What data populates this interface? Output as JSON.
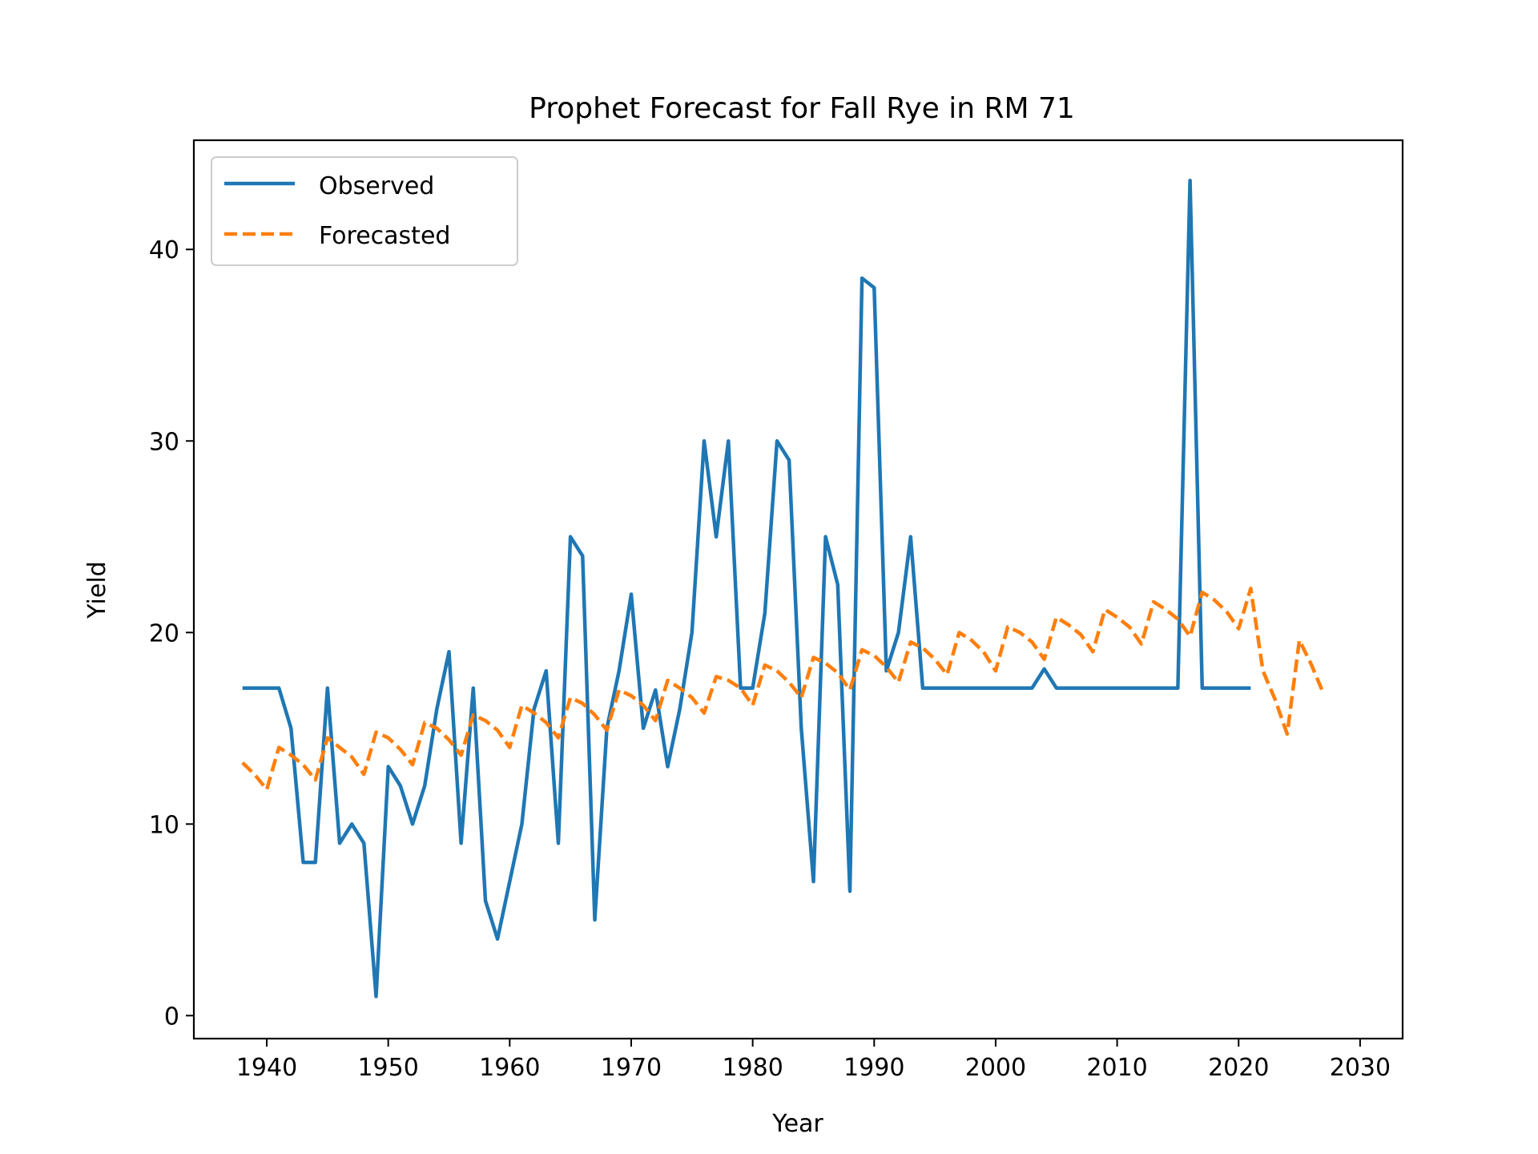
{
  "chart_data": {
    "type": "line",
    "title": "Prophet Forecast for Fall Rye in RM 71",
    "xlabel": "Year",
    "ylabel": "Yield",
    "xlim": [
      1934,
      2033.5
    ],
    "ylim": [
      -1.2,
      45.7
    ],
    "xticks": [
      1940,
      1950,
      1960,
      1970,
      1980,
      1990,
      2000,
      2010,
      2020,
      2030
    ],
    "yticks": [
      0,
      10,
      20,
      30,
      40
    ],
    "grid": false,
    "legend_position": "top-left",
    "series": [
      {
        "name": "Observed",
        "color": "#1f77b4",
        "style": "solid",
        "x": [
          1938,
          1939,
          1940,
          1941,
          1942,
          1943,
          1944,
          1945,
          1946,
          1947,
          1948,
          1949,
          1950,
          1951,
          1952,
          1953,
          1954,
          1955,
          1956,
          1957,
          1958,
          1959,
          1960,
          1961,
          1962,
          1963,
          1964,
          1965,
          1966,
          1967,
          1968,
          1969,
          1970,
          1971,
          1972,
          1973,
          1974,
          1975,
          1976,
          1977,
          1978,
          1979,
          1980,
          1981,
          1982,
          1983,
          1984,
          1985,
          1986,
          1987,
          1988,
          1989,
          1990,
          1991,
          1992,
          1993,
          1994,
          1995,
          1996,
          1997,
          1998,
          1999,
          2000,
          2001,
          2002,
          2003,
          2004,
          2005,
          2006,
          2007,
          2008,
          2009,
          2010,
          2011,
          2012,
          2013,
          2014,
          2015,
          2016,
          2017,
          2018,
          2019,
          2020,
          2021
        ],
        "y": [
          17.1,
          17.1,
          17.1,
          17.1,
          15,
          8,
          8,
          17.1,
          9,
          10,
          9,
          1,
          13,
          12,
          10,
          12,
          16,
          19,
          9,
          17.1,
          6,
          4,
          7,
          10,
          16,
          18,
          9,
          25,
          24,
          5,
          15,
          18,
          22,
          15,
          17,
          13,
          16,
          20,
          30,
          25,
          30,
          17.1,
          17.1,
          21,
          30,
          29,
          15,
          7,
          25,
          22.5,
          6.5,
          38.5,
          38,
          18,
          20,
          25,
          17.1,
          17.1,
          17.1,
          17.1,
          17.1,
          17.1,
          17.1,
          17.1,
          17.1,
          17.1,
          18.1,
          17.1,
          17.1,
          17.1,
          17.1,
          17.1,
          17.1,
          17.1,
          17.1,
          17.1,
          17.1,
          17.1,
          43.6,
          17.1,
          17.1,
          17.1,
          17.1,
          17.1
        ]
      },
      {
        "name": "Forecasted",
        "color": "#ff7f0e",
        "style": "dashed",
        "x": [
          1938,
          1939,
          1940,
          1941,
          1942,
          1943,
          1944,
          1945,
          1946,
          1947,
          1948,
          1949,
          1950,
          1951,
          1952,
          1953,
          1954,
          1955,
          1956,
          1957,
          1958,
          1959,
          1960,
          1961,
          1962,
          1963,
          1964,
          1965,
          1966,
          1967,
          1968,
          1969,
          1970,
          1971,
          1972,
          1973,
          1974,
          1975,
          1976,
          1977,
          1978,
          1979,
          1980,
          1981,
          1982,
          1983,
          1984,
          1985,
          1986,
          1987,
          1988,
          1989,
          1990,
          1991,
          1992,
          1993,
          1994,
          1995,
          1996,
          1997,
          1998,
          1999,
          2000,
          2001,
          2002,
          2003,
          2004,
          2005,
          2006,
          2007,
          2008,
          2009,
          2010,
          2011,
          2012,
          2013,
          2014,
          2015,
          2016,
          2017,
          2018,
          2019,
          2020,
          2021,
          2022,
          2023,
          2024,
          2025,
          2026,
          2027
        ],
        "y": [
          13.2,
          12.6,
          11.8,
          14.0,
          13.6,
          13.1,
          12.3,
          14.5,
          14.0,
          13.5,
          12.6,
          14.8,
          14.5,
          13.9,
          13.1,
          15.3,
          15.0,
          14.4,
          13.6,
          15.7,
          15.4,
          14.9,
          14.0,
          16.2,
          15.8,
          15.3,
          14.5,
          16.6,
          16.3,
          15.7,
          14.9,
          17.0,
          16.7,
          16.2,
          15.4,
          17.5,
          17.1,
          16.6,
          15.8,
          17.7,
          17.5,
          17.1,
          16.2,
          18.3,
          18.0,
          17.4,
          16.6,
          18.7,
          18.4,
          17.9,
          17.0,
          19.1,
          18.8,
          18.2,
          17.4,
          19.5,
          19.2,
          18.6,
          17.8,
          20.0,
          19.6,
          19.0,
          18.0,
          20.3,
          20.0,
          19.5,
          18.6,
          20.8,
          20.4,
          19.9,
          19.0,
          21.2,
          20.8,
          20.3,
          19.4,
          21.6,
          21.2,
          20.7,
          19.8,
          22.1,
          21.7,
          21.1,
          20.2,
          22.3,
          18.0,
          16.5,
          14.7,
          19.6,
          18.3,
          16.8
        ]
      }
    ]
  }
}
